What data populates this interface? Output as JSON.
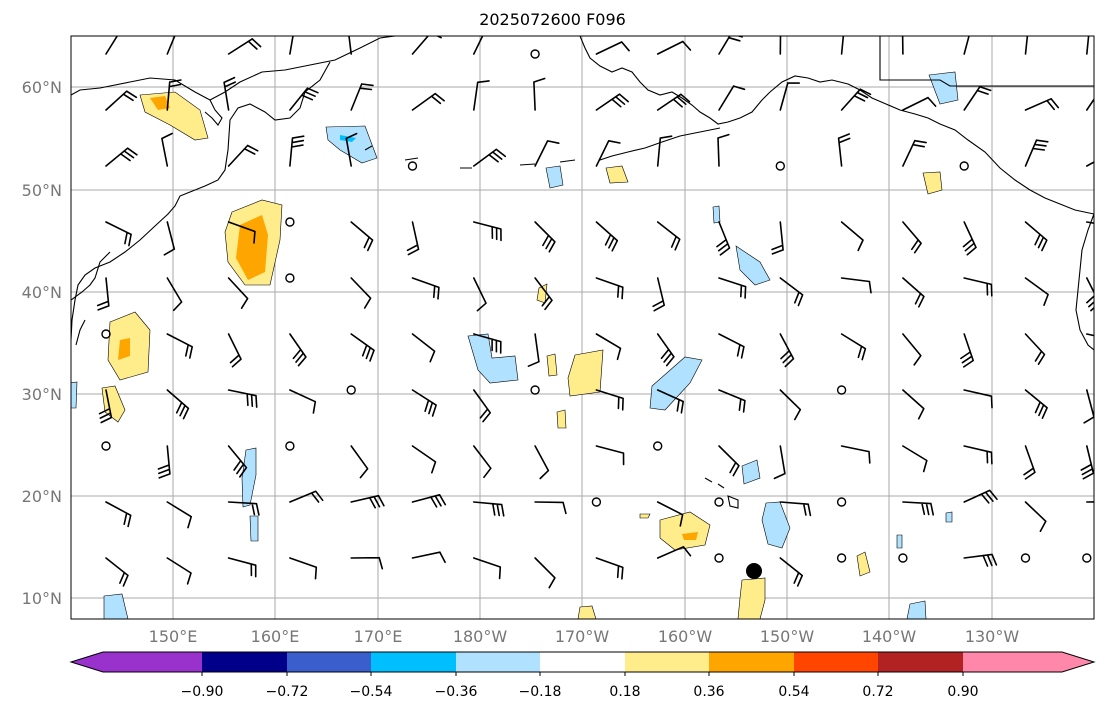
{
  "title": "2025072600 F096",
  "map": {
    "lat_ticks": [
      "60°N",
      "50°N",
      "40°N",
      "30°N",
      "20°N",
      "10°N"
    ],
    "lon_ticks": [
      "150°E",
      "160°E",
      "170°E",
      "180°W",
      "170°W",
      "160°W",
      "150°W",
      "140°W",
      "130°W"
    ],
    "grid": true
  },
  "colorbar": {
    "labels": [
      "−0.90",
      "−0.72",
      "−0.54",
      "−0.36",
      "−0.18",
      "0.18",
      "0.36",
      "0.54",
      "0.72",
      "0.90"
    ],
    "colors": [
      "#9932cc",
      "#00008b",
      "#3a5fcd",
      "#00bfff",
      "#b0e2ff",
      "#ffffff",
      "#ffec8b",
      "#ffa500",
      "#ff4500",
      "#b22222",
      "#ff88aa"
    ]
  },
  "fills": {
    "pos_light": "#ffec8b",
    "pos_mid": "#ffa500",
    "pos_dark": "#ff4500",
    "neg_light": "#b0e2ff",
    "neg_mid": "#00bfff"
  }
}
